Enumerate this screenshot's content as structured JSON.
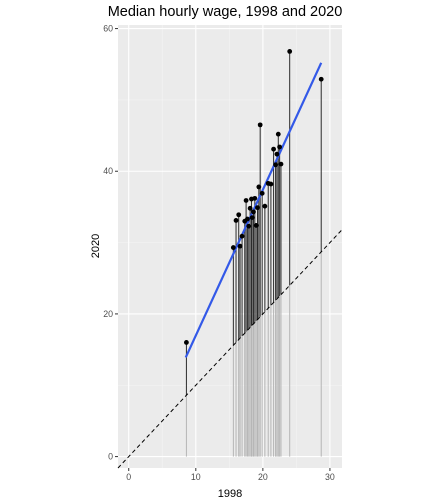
{
  "chart_data": {
    "type": "scatter",
    "title": "Median hourly wage, 1998 and 2020",
    "xlabel": "1998",
    "ylabel": "2020",
    "xlim": [
      -1.6,
      31.8
    ],
    "ylim": [
      -1.6,
      60.5
    ],
    "x_ticks": [
      0,
      10,
      20,
      30
    ],
    "y_ticks": [
      0,
      20,
      40,
      60
    ],
    "grid": true,
    "reference_line": {
      "intercept": 0,
      "slope": 1,
      "style": "dashed"
    },
    "trend_line": {
      "x_start": 8.5,
      "x_end": 28.7,
      "y_start": 13.9,
      "y_end": 55.2
    },
    "points": [
      {
        "x": 8.6,
        "y": 16.0
      },
      {
        "x": 15.6,
        "y": 29.3
      },
      {
        "x": 16.0,
        "y": 33.1
      },
      {
        "x": 16.4,
        "y": 33.9
      },
      {
        "x": 16.6,
        "y": 29.5
      },
      {
        "x": 16.9,
        "y": 30.9
      },
      {
        "x": 17.3,
        "y": 33.0
      },
      {
        "x": 17.5,
        "y": 35.9
      },
      {
        "x": 17.7,
        "y": 33.3
      },
      {
        "x": 17.9,
        "y": 32.3
      },
      {
        "x": 18.1,
        "y": 34.8
      },
      {
        "x": 18.3,
        "y": 36.1
      },
      {
        "x": 18.4,
        "y": 33.5
      },
      {
        "x": 18.6,
        "y": 34.3
      },
      {
        "x": 18.8,
        "y": 36.2
      },
      {
        "x": 19.0,
        "y": 32.4
      },
      {
        "x": 19.2,
        "y": 34.9
      },
      {
        "x": 19.4,
        "y": 37.8
      },
      {
        "x": 19.6,
        "y": 46.5
      },
      {
        "x": 19.9,
        "y": 36.9
      },
      {
        "x": 20.3,
        "y": 35.1
      },
      {
        "x": 20.8,
        "y": 38.3
      },
      {
        "x": 21.2,
        "y": 38.2
      },
      {
        "x": 21.6,
        "y": 43.1
      },
      {
        "x": 21.9,
        "y": 40.9
      },
      {
        "x": 22.1,
        "y": 42.4
      },
      {
        "x": 22.3,
        "y": 45.2
      },
      {
        "x": 22.5,
        "y": 43.4
      },
      {
        "x": 22.7,
        "y": 41.0
      },
      {
        "x": 24.0,
        "y": 56.8
      },
      {
        "x": 28.7,
        "y": 52.9
      }
    ]
  }
}
